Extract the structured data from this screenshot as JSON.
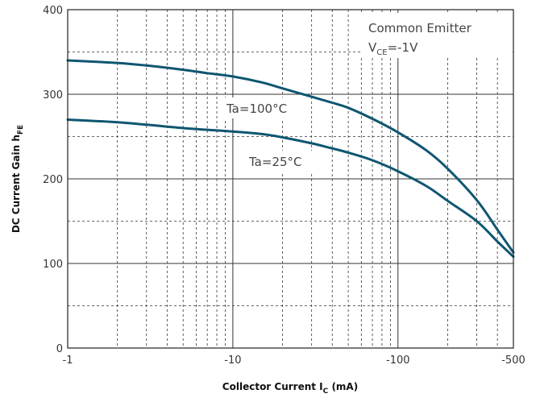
{
  "chart_data": {
    "type": "line",
    "xlabel": "Collector Current I",
    "xlabel_sub": "C",
    "xlabel_suffix": " (mA)",
    "ylabel": "DC Current Gain h",
    "ylabel_sub": "FE",
    "xscale": "log",
    "x_tick_labels": [
      "-1",
      "-10",
      "-100",
      "-500"
    ],
    "x_tick_values": [
      1,
      10,
      100,
      500
    ],
    "y_tick_labels": [
      "0",
      "100",
      "200",
      "300",
      "400"
    ],
    "y_tick_values": [
      0,
      100,
      200,
      300,
      400
    ],
    "xlim": [
      1,
      500
    ],
    "ylim": [
      0,
      400
    ],
    "grid": true,
    "series": [
      {
        "name": "Ta=100°C",
        "x": [
          1,
          2,
          3,
          5,
          7,
          10,
          15,
          20,
          30,
          40,
          50,
          70,
          100,
          150,
          200,
          300,
          400,
          500
        ],
        "values": [
          340,
          337,
          334,
          329,
          325,
          321,
          314,
          307,
          297,
          290,
          284,
          271,
          255,
          233,
          212,
          175,
          140,
          113
        ]
      },
      {
        "name": "Ta=25°C",
        "x": [
          1,
          2,
          3,
          5,
          7,
          10,
          15,
          20,
          30,
          40,
          50,
          70,
          100,
          150,
          200,
          300,
          400,
          500
        ],
        "values": [
          270,
          267,
          264,
          260,
          258,
          256,
          253,
          249,
          242,
          236,
          231,
          222,
          209,
          191,
          174,
          150,
          126,
          108
        ]
      }
    ],
    "annotation": {
      "line1": "Common Emitter",
      "line2_prefix": "V",
      "line2_sub": "CE",
      "line2_suffix": "=-1V"
    },
    "colors": {
      "curve": "#0f5670",
      "grid": "#333333",
      "text": "#333333"
    }
  }
}
